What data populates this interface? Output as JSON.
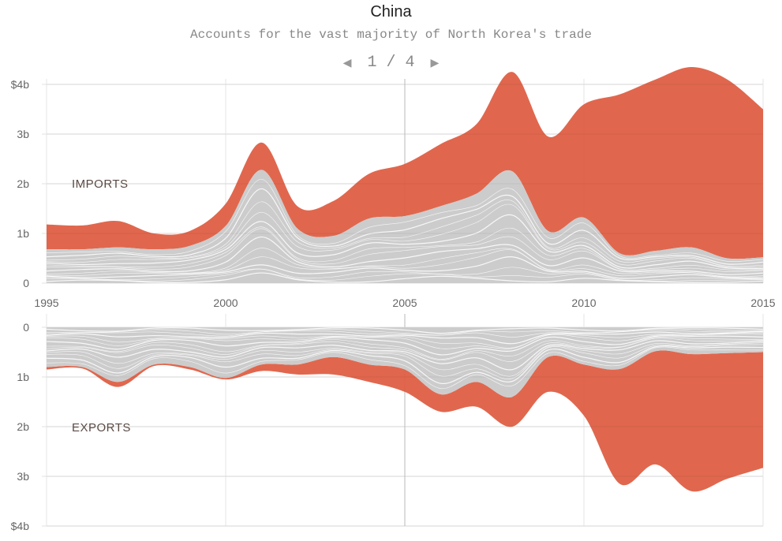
{
  "header": {
    "title": "China",
    "subtitle": "Accounts for the vast majority of North Korea's trade",
    "pager": {
      "text": "1 / 4",
      "prev_icon": "triangle-left",
      "next_icon": "triangle-right"
    }
  },
  "chart_data": [
    {
      "type": "area",
      "label": "IMPORTS",
      "x": [
        1995,
        1996,
        1997,
        1998,
        1999,
        2000,
        2001,
        2002,
        2003,
        2004,
        2005,
        2006,
        2007,
        2008,
        2009,
        2010,
        2011,
        2012,
        2013,
        2014,
        2015
      ],
      "x_ticks": [
        "1995",
        "2000",
        "2005",
        "2010",
        "2015"
      ],
      "y_ticks": [
        "0",
        "1b",
        "2b",
        "3b",
        "$4b"
      ],
      "ylim": [
        0,
        4
      ],
      "unit": "billion USD",
      "direction": "up",
      "series": [
        {
          "key": "other",
          "color": "#cccccc",
          "values": [
            0.68,
            0.68,
            0.72,
            0.68,
            0.75,
            1.15,
            2.28,
            1.1,
            0.95,
            1.3,
            1.35,
            1.55,
            1.8,
            2.25,
            1.05,
            1.32,
            0.6,
            0.65,
            0.72,
            0.5,
            0.52
          ]
        },
        {
          "key": "china",
          "color": "#dd5a3f",
          "values": [
            0.5,
            0.48,
            0.53,
            0.32,
            0.3,
            0.45,
            0.55,
            0.45,
            0.7,
            0.9,
            1.05,
            1.25,
            1.4,
            2.0,
            1.9,
            2.28,
            3.2,
            3.45,
            3.63,
            3.6,
            2.98
          ]
        }
      ],
      "grid": true
    },
    {
      "type": "area",
      "label": "EXPORTS",
      "x": [
        1995,
        1996,
        1997,
        1998,
        1999,
        2000,
        2001,
        2002,
        2003,
        2004,
        2005,
        2006,
        2007,
        2008,
        2009,
        2010,
        2011,
        2012,
        2013,
        2014,
        2015
      ],
      "y_ticks": [
        "0",
        "1b",
        "2b",
        "3b",
        "$4b"
      ],
      "ylim": [
        0,
        4
      ],
      "unit": "billion USD",
      "direction": "down",
      "series": [
        {
          "key": "other",
          "color": "#cccccc",
          "values": [
            0.8,
            0.8,
            1.1,
            0.75,
            0.8,
            1.02,
            0.75,
            0.75,
            0.6,
            0.75,
            0.85,
            1.35,
            1.1,
            1.4,
            0.6,
            0.75,
            0.84,
            0.48,
            0.54,
            0.52,
            0.5
          ]
        },
        {
          "key": "china",
          "color": "#dd5a3f",
          "values": [
            0.05,
            0.03,
            0.1,
            0.03,
            0.05,
            0.03,
            0.13,
            0.2,
            0.35,
            0.35,
            0.45,
            0.35,
            0.5,
            0.6,
            0.7,
            1.03,
            2.31,
            2.28,
            2.76,
            2.53,
            2.33
          ]
        }
      ],
      "grid": true
    }
  ]
}
